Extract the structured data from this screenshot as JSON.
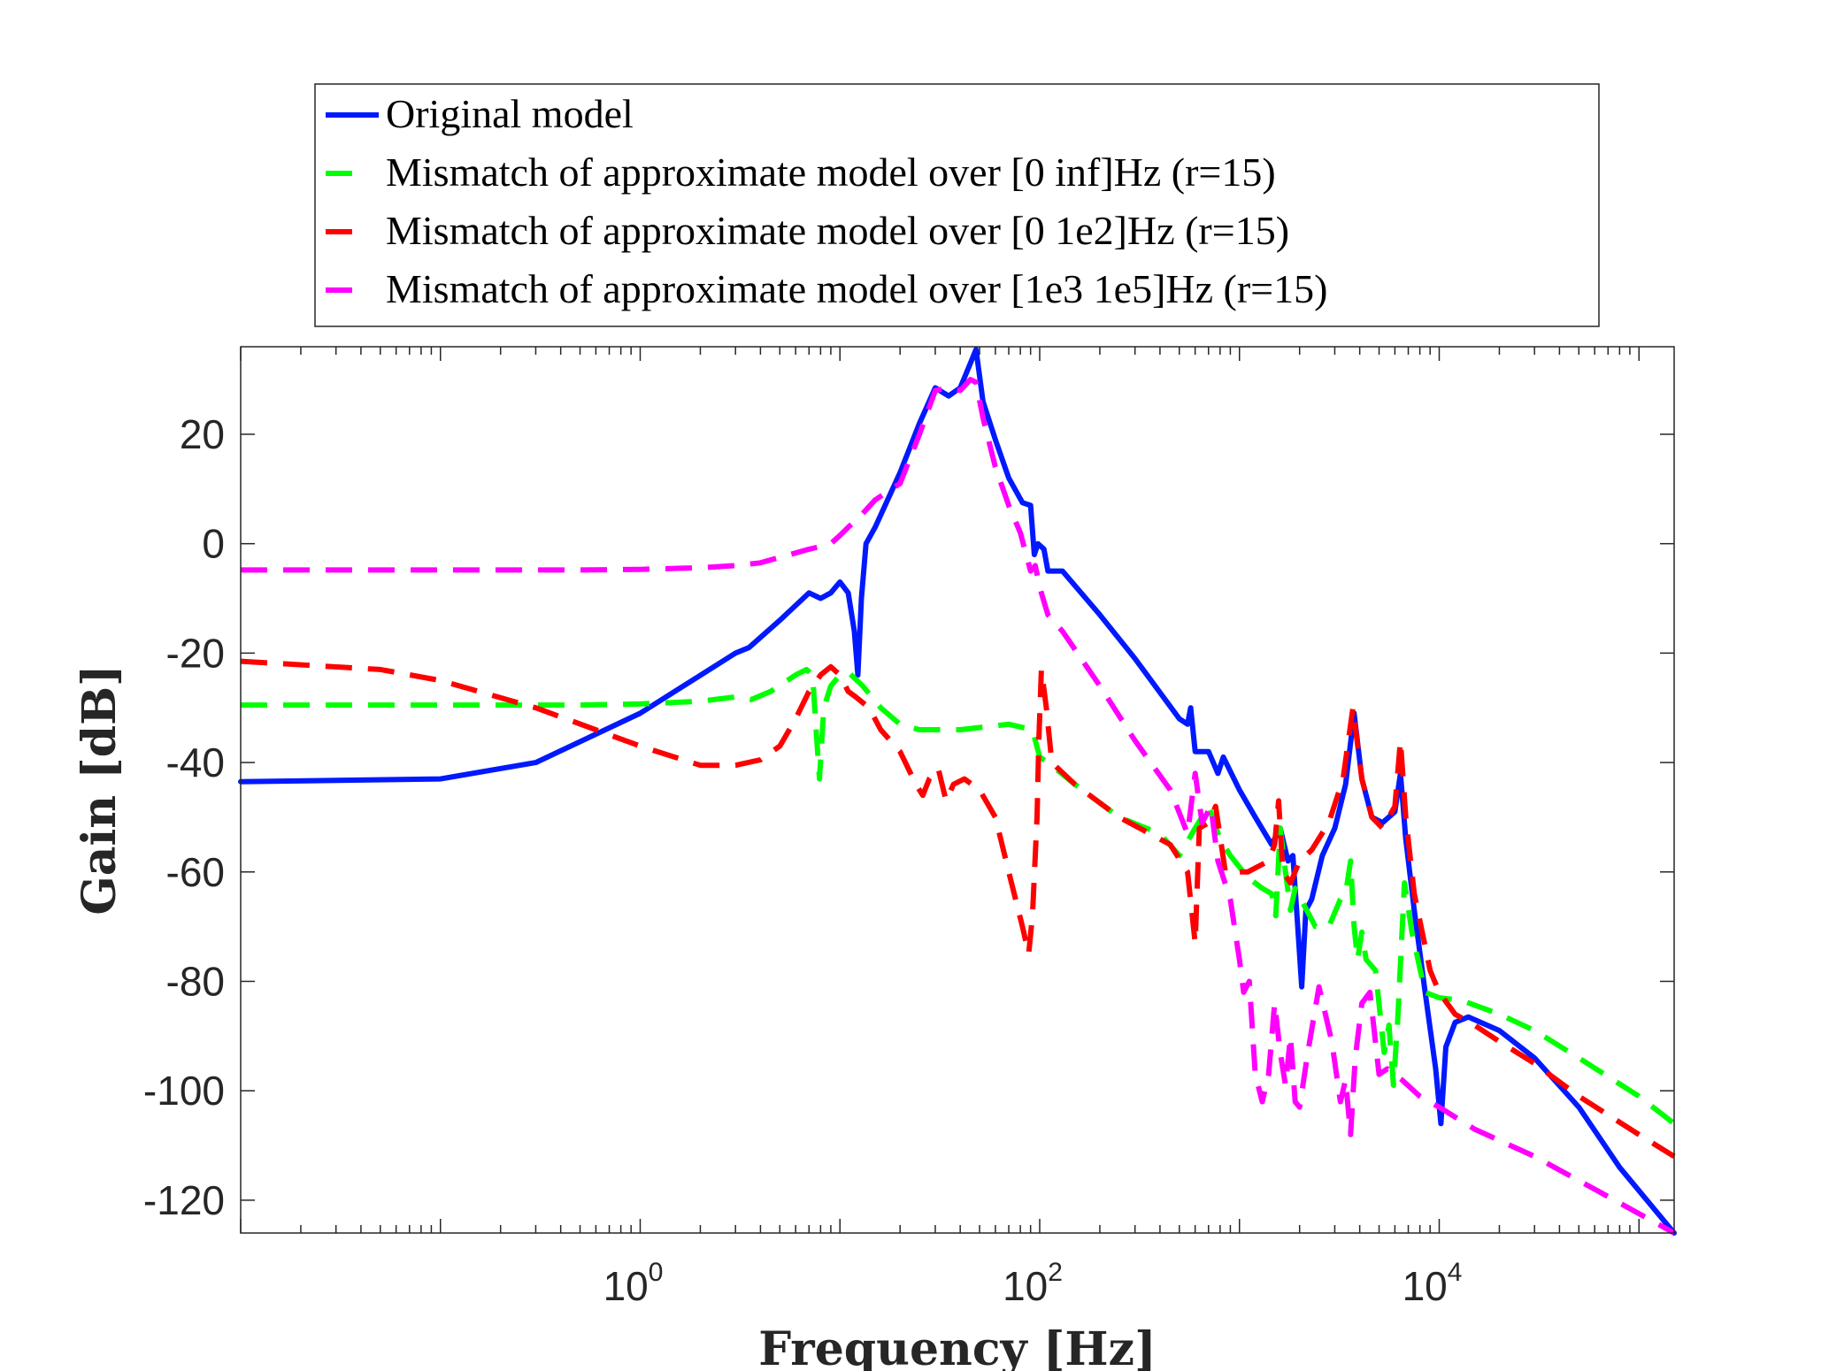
{
  "colors": {
    "original": "#0019ff",
    "inf": "#00ff00",
    "lowband": "#ff0000",
    "highband": "#ff00ff",
    "axis": "#262626",
    "legend_border": "#262626"
  },
  "legend": {
    "placement": "above-plot",
    "entries": [
      {
        "label": "Original model",
        "style": "solid"
      },
      {
        "label": "Mismatch of approximate model over [0 inf]Hz (r=15)",
        "style": "dashed"
      },
      {
        "label": "Mismatch of approximate model over [0 1e2]Hz (r=15)",
        "style": "dashed"
      },
      {
        "label": "Mismatch of approximate model over [1e3 1e5]Hz (r=15)",
        "style": "dashed"
      }
    ]
  },
  "chart_data": {
    "type": "line",
    "title": "",
    "xlabel": "Frequency [Hz]",
    "ylabel": "Gain [dB]",
    "xscale": "log",
    "xlim": [
      0.01,
      150000
    ],
    "ylim": [
      -126,
      36
    ],
    "grid": false,
    "xticks": [
      {
        "value": 1,
        "base": "10",
        "exp": "0"
      },
      {
        "value": 100,
        "base": "10",
        "exp": "2"
      },
      {
        "value": 10000,
        "base": "10",
        "exp": "4"
      }
    ],
    "yticks": [
      {
        "value": 20,
        "label": "20"
      },
      {
        "value": 0,
        "label": "0"
      },
      {
        "value": -20,
        "label": "-20"
      },
      {
        "value": -40,
        "label": "-40"
      },
      {
        "value": -60,
        "label": "-60"
      },
      {
        "value": -80,
        "label": "-80"
      },
      {
        "value": -100,
        "label": "-100"
      },
      {
        "value": -120,
        "label": "-120"
      }
    ],
    "series": [
      {
        "name": "Original model",
        "color": "#0019ff",
        "style": "solid",
        "points": [
          [
            0.01,
            -43.5
          ],
          [
            0.1,
            -43
          ],
          [
            0.3,
            -40
          ],
          [
            1.0,
            -31
          ],
          [
            3.0,
            -20
          ],
          [
            3.5,
            -19
          ],
          [
            5.0,
            -14
          ],
          [
            7.0,
            -9
          ],
          [
            8.0,
            -10
          ],
          [
            9.0,
            -9
          ],
          [
            10.0,
            -7
          ],
          [
            11.0,
            -9
          ],
          [
            11.8,
            -16
          ],
          [
            12.3,
            -24
          ],
          [
            12.8,
            -10
          ],
          [
            13.5,
            0
          ],
          [
            15.0,
            3
          ],
          [
            20.0,
            13
          ],
          [
            25.0,
            22
          ],
          [
            30.0,
            28.5
          ],
          [
            35.0,
            27
          ],
          [
            40.0,
            28.5
          ],
          [
            45.0,
            33
          ],
          [
            48.0,
            35.5
          ],
          [
            52.0,
            26
          ],
          [
            60.0,
            19
          ],
          [
            70.0,
            12
          ],
          [
            82.0,
            7.5
          ],
          [
            90.0,
            7
          ],
          [
            94.0,
            -2
          ],
          [
            98.0,
            0
          ],
          [
            105.0,
            -1
          ],
          [
            110.0,
            -5
          ],
          [
            130.0,
            -5
          ],
          [
            200.0,
            -13
          ],
          [
            300.0,
            -21
          ],
          [
            500.0,
            -32
          ],
          [
            550.0,
            -33
          ],
          [
            570.0,
            -30
          ],
          [
            600.0,
            -38
          ],
          [
            700.0,
            -38
          ],
          [
            780.0,
            -42
          ],
          [
            830.0,
            -39
          ],
          [
            1000.0,
            -45
          ],
          [
            1200.0,
            -50
          ],
          [
            1450.0,
            -55
          ],
          [
            1600.0,
            -52
          ],
          [
            1750.0,
            -58
          ],
          [
            1850.0,
            -57
          ],
          [
            1950.0,
            -69
          ],
          [
            2050.0,
            -81
          ],
          [
            2150.0,
            -67
          ],
          [
            2300.0,
            -65
          ],
          [
            2600.0,
            -57
          ],
          [
            3000.0,
            -52
          ],
          [
            3400.0,
            -44
          ],
          [
            3750.0,
            -31
          ],
          [
            4100.0,
            -43
          ],
          [
            4600.0,
            -50
          ],
          [
            5200.0,
            -51
          ],
          [
            6000.0,
            -49
          ],
          [
            6400.0,
            -42
          ],
          [
            6800.0,
            -54
          ],
          [
            7500.0,
            -67
          ],
          [
            8500.0,
            -82
          ],
          [
            9600.0,
            -96
          ],
          [
            10200.0,
            -106
          ],
          [
            10800.0,
            -92
          ],
          [
            12000.0,
            -87.5
          ],
          [
            14000.0,
            -86.5
          ],
          [
            20000.0,
            -89
          ],
          [
            30000.0,
            -94
          ],
          [
            50000.0,
            -103
          ],
          [
            80000.0,
            -114
          ],
          [
            150000.0,
            -126
          ]
        ]
      },
      {
        "name": "Mismatch of approximate model over [0 inf]Hz (r=15)",
        "color": "#00ff00",
        "style": "dashed",
        "points": [
          [
            0.01,
            -29.5
          ],
          [
            0.1,
            -29.5
          ],
          [
            0.5,
            -29.5
          ],
          [
            1.0,
            -29.3
          ],
          [
            2.0,
            -28.8
          ],
          [
            3.0,
            -28
          ],
          [
            3.6,
            -28.5
          ],
          [
            4.5,
            -27
          ],
          [
            6.0,
            -24
          ],
          [
            6.8,
            -23
          ],
          [
            7.3,
            -24
          ],
          [
            7.6,
            -34
          ],
          [
            7.9,
            -43
          ],
          [
            8.3,
            -30
          ],
          [
            9.0,
            -26
          ],
          [
            10.0,
            -24
          ],
          [
            11.0,
            -23.5
          ],
          [
            13.0,
            -26
          ],
          [
            16.0,
            -30
          ],
          [
            20.0,
            -33
          ],
          [
            25.0,
            -34
          ],
          [
            40.0,
            -34
          ],
          [
            70.0,
            -33
          ],
          [
            92.0,
            -34
          ],
          [
            100.0,
            -39
          ],
          [
            110.0,
            -40
          ],
          [
            150.0,
            -44
          ],
          [
            250.0,
            -50
          ],
          [
            400.0,
            -53
          ],
          [
            500.0,
            -57
          ],
          [
            600.0,
            -52
          ],
          [
            700.0,
            -48
          ],
          [
            800.0,
            -54
          ],
          [
            900.0,
            -57
          ],
          [
            1100.0,
            -61
          ],
          [
            1300.0,
            -63
          ],
          [
            1450.0,
            -64
          ],
          [
            1520.0,
            -68
          ],
          [
            1600.0,
            -52
          ],
          [
            1700.0,
            -60
          ],
          [
            1800.0,
            -67
          ],
          [
            1900.0,
            -63
          ],
          [
            2100.0,
            -66
          ],
          [
            2400.0,
            -70
          ],
          [
            2800.0,
            -70
          ],
          [
            3200.0,
            -65
          ],
          [
            3400.0,
            -64
          ],
          [
            3600.0,
            -58
          ],
          [
            3750.0,
            -70
          ],
          [
            3900.0,
            -76
          ],
          [
            4100.0,
            -71
          ],
          [
            4300.0,
            -76
          ],
          [
            4800.0,
            -78
          ],
          [
            5300.0,
            -93
          ],
          [
            5600.0,
            -88
          ],
          [
            5900.0,
            -99
          ],
          [
            6200.0,
            -87
          ],
          [
            6700.0,
            -62
          ],
          [
            7300.0,
            -71
          ],
          [
            8500.0,
            -82
          ],
          [
            10000.0,
            -83
          ],
          [
            13000.0,
            -83.5
          ],
          [
            20000.0,
            -86
          ],
          [
            30000.0,
            -89
          ],
          [
            50000.0,
            -94
          ],
          [
            100000.0,
            -101
          ],
          [
            150000.0,
            -106
          ]
        ]
      },
      {
        "name": "Mismatch of approximate model over [0 1e2]Hz (r=15)",
        "color": "#ff0000",
        "style": "dashed",
        "points": [
          [
            0.01,
            -21.5
          ],
          [
            0.05,
            -23
          ],
          [
            0.1,
            -25
          ],
          [
            0.3,
            -30
          ],
          [
            1.0,
            -37
          ],
          [
            2.0,
            -40.5
          ],
          [
            3.0,
            -40.5
          ],
          [
            4.0,
            -39.5
          ],
          [
            5.0,
            -37
          ],
          [
            6.0,
            -32
          ],
          [
            7.0,
            -27
          ],
          [
            8.0,
            -24
          ],
          [
            9.0,
            -22.5
          ],
          [
            10.0,
            -24
          ],
          [
            11.0,
            -27
          ],
          [
            12.0,
            -28
          ],
          [
            14.0,
            -30
          ],
          [
            16.0,
            -34
          ],
          [
            20.0,
            -38
          ],
          [
            24.0,
            -44
          ],
          [
            26.0,
            -46
          ],
          [
            28.0,
            -43
          ],
          [
            31.0,
            -41
          ],
          [
            34.0,
            -47
          ],
          [
            37.0,
            -44
          ],
          [
            42.0,
            -43
          ],
          [
            50.0,
            -45
          ],
          [
            60.0,
            -50
          ],
          [
            70.0,
            -60
          ],
          [
            82.0,
            -70
          ],
          [
            88.0,
            -75
          ],
          [
            92.0,
            -68
          ],
          [
            97.0,
            -50
          ],
          [
            99.0,
            -36
          ],
          [
            102.0,
            -23
          ],
          [
            108.0,
            -30
          ],
          [
            115.0,
            -40
          ],
          [
            150.0,
            -44
          ],
          [
            250.0,
            -50
          ],
          [
            450.0,
            -55
          ],
          [
            550.0,
            -60
          ],
          [
            600.0,
            -73
          ],
          [
            630.0,
            -52
          ],
          [
            700.0,
            -51
          ],
          [
            760.0,
            -48
          ],
          [
            850.0,
            -60
          ],
          [
            1100.0,
            -60
          ],
          [
            1400.0,
            -58
          ],
          [
            1500.0,
            -55
          ],
          [
            1570.0,
            -47
          ],
          [
            1650.0,
            -60
          ],
          [
            1800.0,
            -62
          ],
          [
            2000.0,
            -58
          ],
          [
            2300.0,
            -56
          ],
          [
            2800.0,
            -51
          ],
          [
            3300.0,
            -43
          ],
          [
            3700.0,
            -30
          ],
          [
            4100.0,
            -43
          ],
          [
            4600.0,
            -50
          ],
          [
            5200.0,
            -52
          ],
          [
            6000.0,
            -48
          ],
          [
            6400.0,
            -36
          ],
          [
            6800.0,
            -50
          ],
          [
            7500.0,
            -64
          ],
          [
            9000.0,
            -78
          ],
          [
            10000.0,
            -82
          ],
          [
            12000.0,
            -86
          ],
          [
            15000.0,
            -88
          ],
          [
            20000.0,
            -91
          ],
          [
            30000.0,
            -95
          ],
          [
            50000.0,
            -101
          ],
          [
            100000.0,
            -108
          ],
          [
            150000.0,
            -112
          ]
        ]
      },
      {
        "name": "Mismatch of approximate model over [1e3 1e5]Hz (r=15)",
        "color": "#ff00ff",
        "style": "dashed",
        "points": [
          [
            0.01,
            -4.8
          ],
          [
            0.1,
            -4.8
          ],
          [
            0.5,
            -4.8
          ],
          [
            1.0,
            -4.7
          ],
          [
            2.0,
            -4.4
          ],
          [
            3.0,
            -4
          ],
          [
            4.0,
            -3.5
          ],
          [
            5.0,
            -2.5
          ],
          [
            7.0,
            -1
          ],
          [
            8.0,
            -0.5
          ],
          [
            9.0,
            0
          ],
          [
            10.0,
            1.5
          ],
          [
            11.0,
            3
          ],
          [
            13.0,
            5.5
          ],
          [
            15.0,
            8
          ],
          [
            20.0,
            11
          ],
          [
            25.0,
            20
          ],
          [
            30.0,
            28
          ],
          [
            35.0,
            28.5
          ],
          [
            40.0,
            28
          ],
          [
            45.0,
            30
          ],
          [
            48.0,
            29.5
          ],
          [
            52.0,
            23
          ],
          [
            60.0,
            14
          ],
          [
            70.0,
            7
          ],
          [
            80.0,
            2
          ],
          [
            90.0,
            -5
          ],
          [
            95.0,
            -4
          ],
          [
            100.0,
            -8
          ],
          [
            110.0,
            -13
          ],
          [
            130.0,
            -16
          ],
          [
            200.0,
            -26
          ],
          [
            300.0,
            -36
          ],
          [
            450.0,
            -45
          ],
          [
            550.0,
            -53
          ],
          [
            600.0,
            -42
          ],
          [
            650.0,
            -51
          ],
          [
            720.0,
            -48
          ],
          [
            780.0,
            -58
          ],
          [
            900.0,
            -65
          ],
          [
            1000.0,
            -76
          ],
          [
            1050.0,
            -82
          ],
          [
            1120.0,
            -80
          ],
          [
            1200.0,
            -97
          ],
          [
            1300.0,
            -102
          ],
          [
            1400.0,
            -97
          ],
          [
            1500.0,
            -84
          ],
          [
            1600.0,
            -93
          ],
          [
            1700.0,
            -99
          ],
          [
            1800.0,
            -90
          ],
          [
            1900.0,
            -102
          ],
          [
            2000.0,
            -103
          ],
          [
            2200.0,
            -93
          ],
          [
            2500.0,
            -81
          ],
          [
            2900.0,
            -91
          ],
          [
            3200.0,
            -102
          ],
          [
            3400.0,
            -98
          ],
          [
            3600.0,
            -108
          ],
          [
            3800.0,
            -94
          ],
          [
            4100.0,
            -84
          ],
          [
            4500.0,
            -82
          ],
          [
            5000.0,
            -97
          ],
          [
            5500.0,
            -96
          ],
          [
            6500.0,
            -98
          ],
          [
            8000.0,
            -101
          ],
          [
            10000.0,
            -103
          ],
          [
            15000.0,
            -107
          ],
          [
            30000.0,
            -112
          ],
          [
            60000.0,
            -118
          ],
          [
            150000.0,
            -126
          ]
        ]
      }
    ]
  }
}
